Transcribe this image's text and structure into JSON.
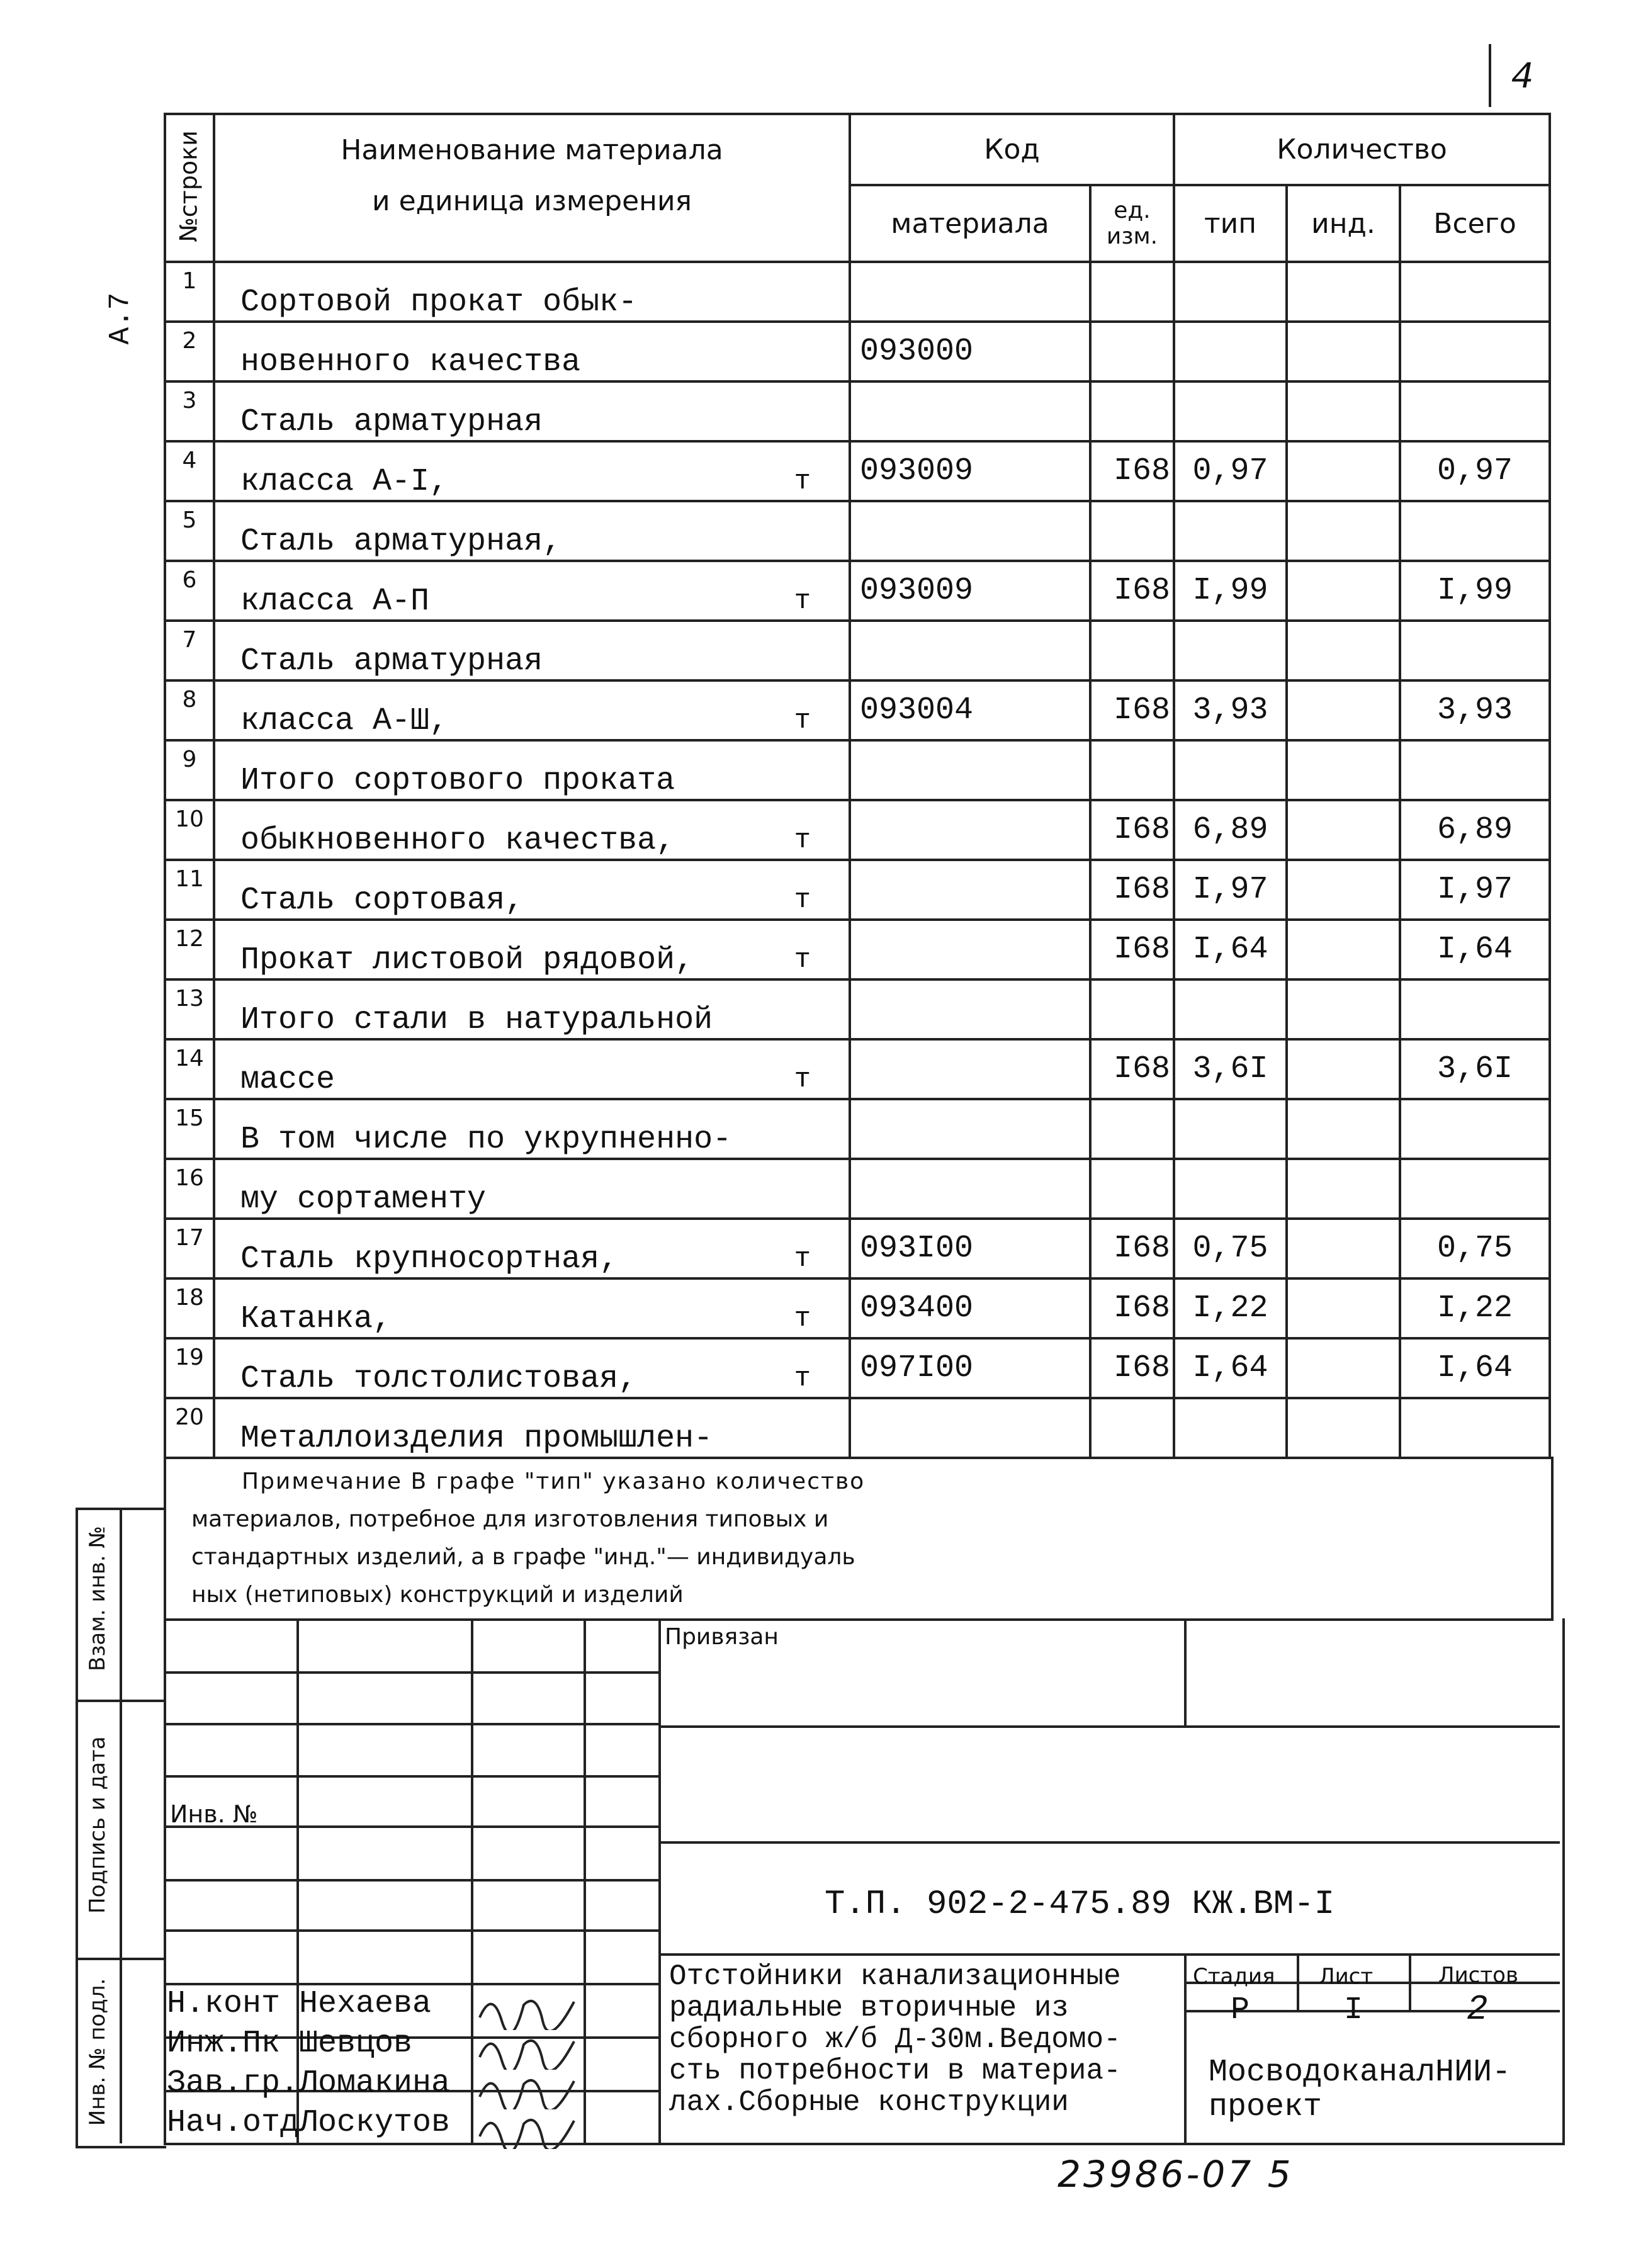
{
  "page_number": "4",
  "side_label": "А.7",
  "header": {
    "row_no": "№строки",
    "name_line1": "Наименование материала",
    "name_line2": "и единица измерения",
    "code": "Код",
    "code_material": "материала",
    "code_unit": "ед. изм.",
    "quantity": "Количество",
    "qty_type": "тип",
    "qty_ind": "инд.",
    "qty_total": "Всего"
  },
  "rows": [
    {
      "n": "1",
      "name": "Сортовой прокат обык-",
      "unit": "",
      "code": "",
      "ed": "",
      "tip": "",
      "ind": "",
      "total": ""
    },
    {
      "n": "2",
      "name": "новенного качества",
      "unit": "",
      "code": "093000",
      "ed": "",
      "tip": "",
      "ind": "",
      "total": ""
    },
    {
      "n": "3",
      "name": "Сталь арматурная",
      "unit": "",
      "code": "",
      "ed": "",
      "tip": "",
      "ind": "",
      "total": ""
    },
    {
      "n": "4",
      "name": "класса А-I,",
      "unit": "т",
      "code": "093009",
      "ed": "I68",
      "tip": "0,97",
      "ind": "",
      "total": "0,97"
    },
    {
      "n": "5",
      "name": "Сталь арматурная,",
      "unit": "",
      "code": "",
      "ed": "",
      "tip": "",
      "ind": "",
      "total": ""
    },
    {
      "n": "6",
      "name": "класса А-П",
      "unit": "т",
      "code": "093009",
      "ed": "I68",
      "tip": "I,99",
      "ind": "",
      "total": "I,99"
    },
    {
      "n": "7",
      "name": "Сталь арматурная",
      "unit": "",
      "code": "",
      "ed": "",
      "tip": "",
      "ind": "",
      "total": ""
    },
    {
      "n": "8",
      "name": "класса А-Ш,",
      "unit": "т",
      "code": "093004",
      "ed": "I68",
      "tip": "3,93",
      "ind": "",
      "total": "3,93"
    },
    {
      "n": "9",
      "name": "Итого сортового проката",
      "unit": "",
      "code": "",
      "ed": "",
      "tip": "",
      "ind": "",
      "total": ""
    },
    {
      "n": "10",
      "name": "обыкновенного качества,",
      "unit": "т",
      "code": "",
      "ed": "I68",
      "tip": "6,89",
      "ind": "",
      "total": "6,89"
    },
    {
      "n": "11",
      "name": "Сталь сортовая,",
      "unit": "т",
      "code": "",
      "ed": "I68",
      "tip": "I,97",
      "ind": "",
      "total": "I,97"
    },
    {
      "n": "12",
      "name": "Прокат листовой рядовой,",
      "unit": "т",
      "code": "",
      "ed": "I68",
      "tip": "I,64",
      "ind": "",
      "total": "I,64"
    },
    {
      "n": "13",
      "name": "Итого стали в натуральной",
      "unit": "",
      "code": "",
      "ed": "",
      "tip": "",
      "ind": "",
      "total": ""
    },
    {
      "n": "14",
      "name": "массе",
      "unit": "т",
      "code": "",
      "ed": "I68",
      "tip": "3,6I",
      "ind": "",
      "total": "3,6I"
    },
    {
      "n": "15",
      "name": "В том числе по укрупненно-",
      "unit": "",
      "code": "",
      "ed": "",
      "tip": "",
      "ind": "",
      "total": ""
    },
    {
      "n": "16",
      "name": "му сортаменту",
      "unit": "",
      "code": "",
      "ed": "",
      "tip": "",
      "ind": "",
      "total": ""
    },
    {
      "n": "17",
      "name": "Сталь крупносортная,",
      "unit": "т",
      "code": "093I00",
      "ed": "I68",
      "tip": "0,75",
      "ind": "",
      "total": "0,75"
    },
    {
      "n": "18",
      "name": "Катанка,",
      "unit": "т",
      "code": "093400",
      "ed": "I68",
      "tip": "I,22",
      "ind": "",
      "total": "I,22"
    },
    {
      "n": "19",
      "name": "Сталь толстолистовая,",
      "unit": "т",
      "code": "097I00",
      "ed": "I68",
      "tip": "I,64",
      "ind": "",
      "total": "I,64"
    },
    {
      "n": "20",
      "name": "Металлоизделия промышлен-",
      "unit": "",
      "code": "",
      "ed": "",
      "tip": "",
      "ind": "",
      "total": ""
    }
  ],
  "note": {
    "line1": "Примечание В графе \"тип\" указано количество",
    "line2": "материалов, потребное для изготовления типовых и",
    "line3": "стандартных изделий, а в графе \"инд.\"— индивидуаль",
    "line4": "ных (нетиповых) конструкций и изделий"
  },
  "margin_labels": {
    "replace_inv": "Взам. инв. №",
    "signature_date": "Подпись и дата",
    "inv_original": "Инв. № подл."
  },
  "stamp": {
    "bound": "Привязан",
    "inv_no": "Инв. №",
    "doc_code": "Т.П. 902-2-475.89 КЖ.ВМ-I",
    "title": [
      "Отстойники канализационные",
      "радиальные вторичные из",
      "сборного ж/б Д-30м.Ведомо-",
      "сть потребности в материа-",
      "лах.Сборные конструкции"
    ],
    "stage_label": "Стадия",
    "sheet_label": "Лист",
    "sheets_label": "Листов",
    "stage": "Р",
    "sheet": "I",
    "sheets": "2",
    "org": [
      "МосводоканалНИИ-",
      "проект"
    ],
    "people": [
      {
        "role": "Н.конт",
        "name": "Нехаева"
      },
      {
        "role": "Инж.Пк",
        "name": "Шевцов"
      },
      {
        "role": "Зав.гр.",
        "name": "Ломакина"
      },
      {
        "role": "Нач.отд",
        "name": "Лоскутов"
      }
    ]
  },
  "footer_number": "23986-07  5"
}
